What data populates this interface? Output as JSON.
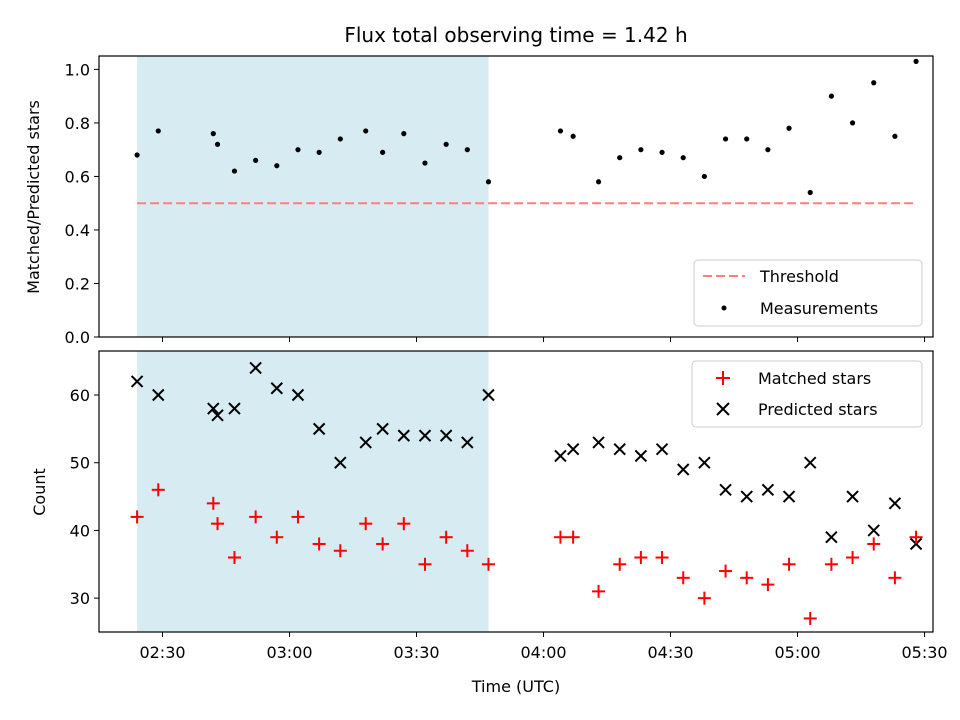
{
  "chart_data": [
    {
      "type": "scatter",
      "title": "Flux total observing time = 1.42 h",
      "xlabel": "",
      "ylabel": "Matched/Predicted stars",
      "xlim": [
        "02:15",
        "05:32"
      ],
      "ylim": [
        0.0,
        1.05
      ],
      "yticks": [
        "0.0",
        "0.2",
        "0.4",
        "0.6",
        "0.8",
        "1.0"
      ],
      "shaded_span": {
        "start": "02:24",
        "end": "03:47",
        "color": "#add8e6"
      },
      "grid": false,
      "legend_position": "lower-right",
      "legend": {
        "threshold_label": "Threshold",
        "measurements_label": "Measurements"
      },
      "threshold": {
        "name": "Threshold",
        "value": 0.5,
        "x_start": "02:24",
        "x_end": "05:28",
        "color": "#ff7f7f"
      },
      "series": [
        {
          "name": "Measurements",
          "color": "#000000",
          "x": [
            "02:24",
            "02:29",
            "02:42",
            "02:43",
            "02:47",
            "02:52",
            "02:57",
            "03:02",
            "03:07",
            "03:12",
            "03:18",
            "03:22",
            "03:27",
            "03:32",
            "03:37",
            "03:42",
            "03:47",
            "04:04",
            "04:07",
            "04:13",
            "04:18",
            "04:23",
            "04:28",
            "04:33",
            "04:38",
            "04:43",
            "04:48",
            "04:53",
            "04:58",
            "05:03",
            "05:08",
            "05:13",
            "05:18",
            "05:23",
            "05:28"
          ],
          "y": [
            0.68,
            0.77,
            0.76,
            0.72,
            0.62,
            0.66,
            0.64,
            0.7,
            0.69,
            0.74,
            0.77,
            0.69,
            0.76,
            0.65,
            0.72,
            0.7,
            0.58,
            0.77,
            0.75,
            0.58,
            0.67,
            0.7,
            0.69,
            0.67,
            0.6,
            0.74,
            0.74,
            0.7,
            0.78,
            0.54,
            0.9,
            0.8,
            0.95,
            0.75,
            1.03
          ]
        }
      ]
    },
    {
      "type": "scatter",
      "title": "",
      "xlabel": "Time (UTC)",
      "ylabel": "Count",
      "xlim": [
        "02:15",
        "05:32"
      ],
      "ylim": [
        25,
        66.5
      ],
      "xticks": [
        "02:30",
        "03:00",
        "03:30",
        "04:00",
        "04:30",
        "05:00",
        "05:30"
      ],
      "yticks": [
        "30",
        "40",
        "50",
        "60"
      ],
      "shaded_span": {
        "start": "02:24",
        "end": "03:47",
        "color": "#add8e6"
      },
      "grid": false,
      "legend_position": "upper-right",
      "legend": {
        "matched_label": "Matched stars",
        "predicted_label": "Predicted stars"
      },
      "series": [
        {
          "name": "Matched stars",
          "marker": "+",
          "color": "#ff0000",
          "x": [
            "02:24",
            "02:29",
            "02:42",
            "02:43",
            "02:47",
            "02:52",
            "02:57",
            "03:02",
            "03:07",
            "03:12",
            "03:18",
            "03:22",
            "03:27",
            "03:32",
            "03:37",
            "03:42",
            "03:47",
            "04:04",
            "04:07",
            "04:13",
            "04:18",
            "04:23",
            "04:28",
            "04:33",
            "04:38",
            "04:43",
            "04:48",
            "04:53",
            "04:58",
            "05:03",
            "05:08",
            "05:13",
            "05:18",
            "05:23",
            "05:28"
          ],
          "y": [
            42,
            46,
            44,
            41,
            36,
            42,
            39,
            42,
            38,
            37,
            41,
            38,
            41,
            35,
            39,
            37,
            35,
            39,
            39,
            31,
            35,
            36,
            36,
            33,
            30,
            34,
            33,
            32,
            35,
            27,
            35,
            36,
            38,
            33,
            39
          ]
        },
        {
          "name": "Predicted stars",
          "marker": "x",
          "color": "#000000",
          "x": [
            "02:24",
            "02:29",
            "02:42",
            "02:43",
            "02:47",
            "02:52",
            "02:57",
            "03:02",
            "03:07",
            "03:12",
            "03:18",
            "03:22",
            "03:27",
            "03:32",
            "03:37",
            "03:42",
            "03:47",
            "04:04",
            "04:07",
            "04:13",
            "04:18",
            "04:23",
            "04:28",
            "04:33",
            "04:38",
            "04:43",
            "04:48",
            "04:53",
            "04:58",
            "05:03",
            "05:08",
            "05:13",
            "05:18",
            "05:23",
            "05:28"
          ],
          "y": [
            62,
            60,
            58,
            57,
            58,
            64,
            61,
            60,
            55,
            50,
            53,
            55,
            54,
            54,
            54,
            53,
            60,
            51,
            52,
            53,
            52,
            51,
            52,
            49,
            50,
            46,
            45,
            46,
            45,
            50,
            39,
            45,
            40,
            44,
            38
          ]
        }
      ]
    }
  ]
}
